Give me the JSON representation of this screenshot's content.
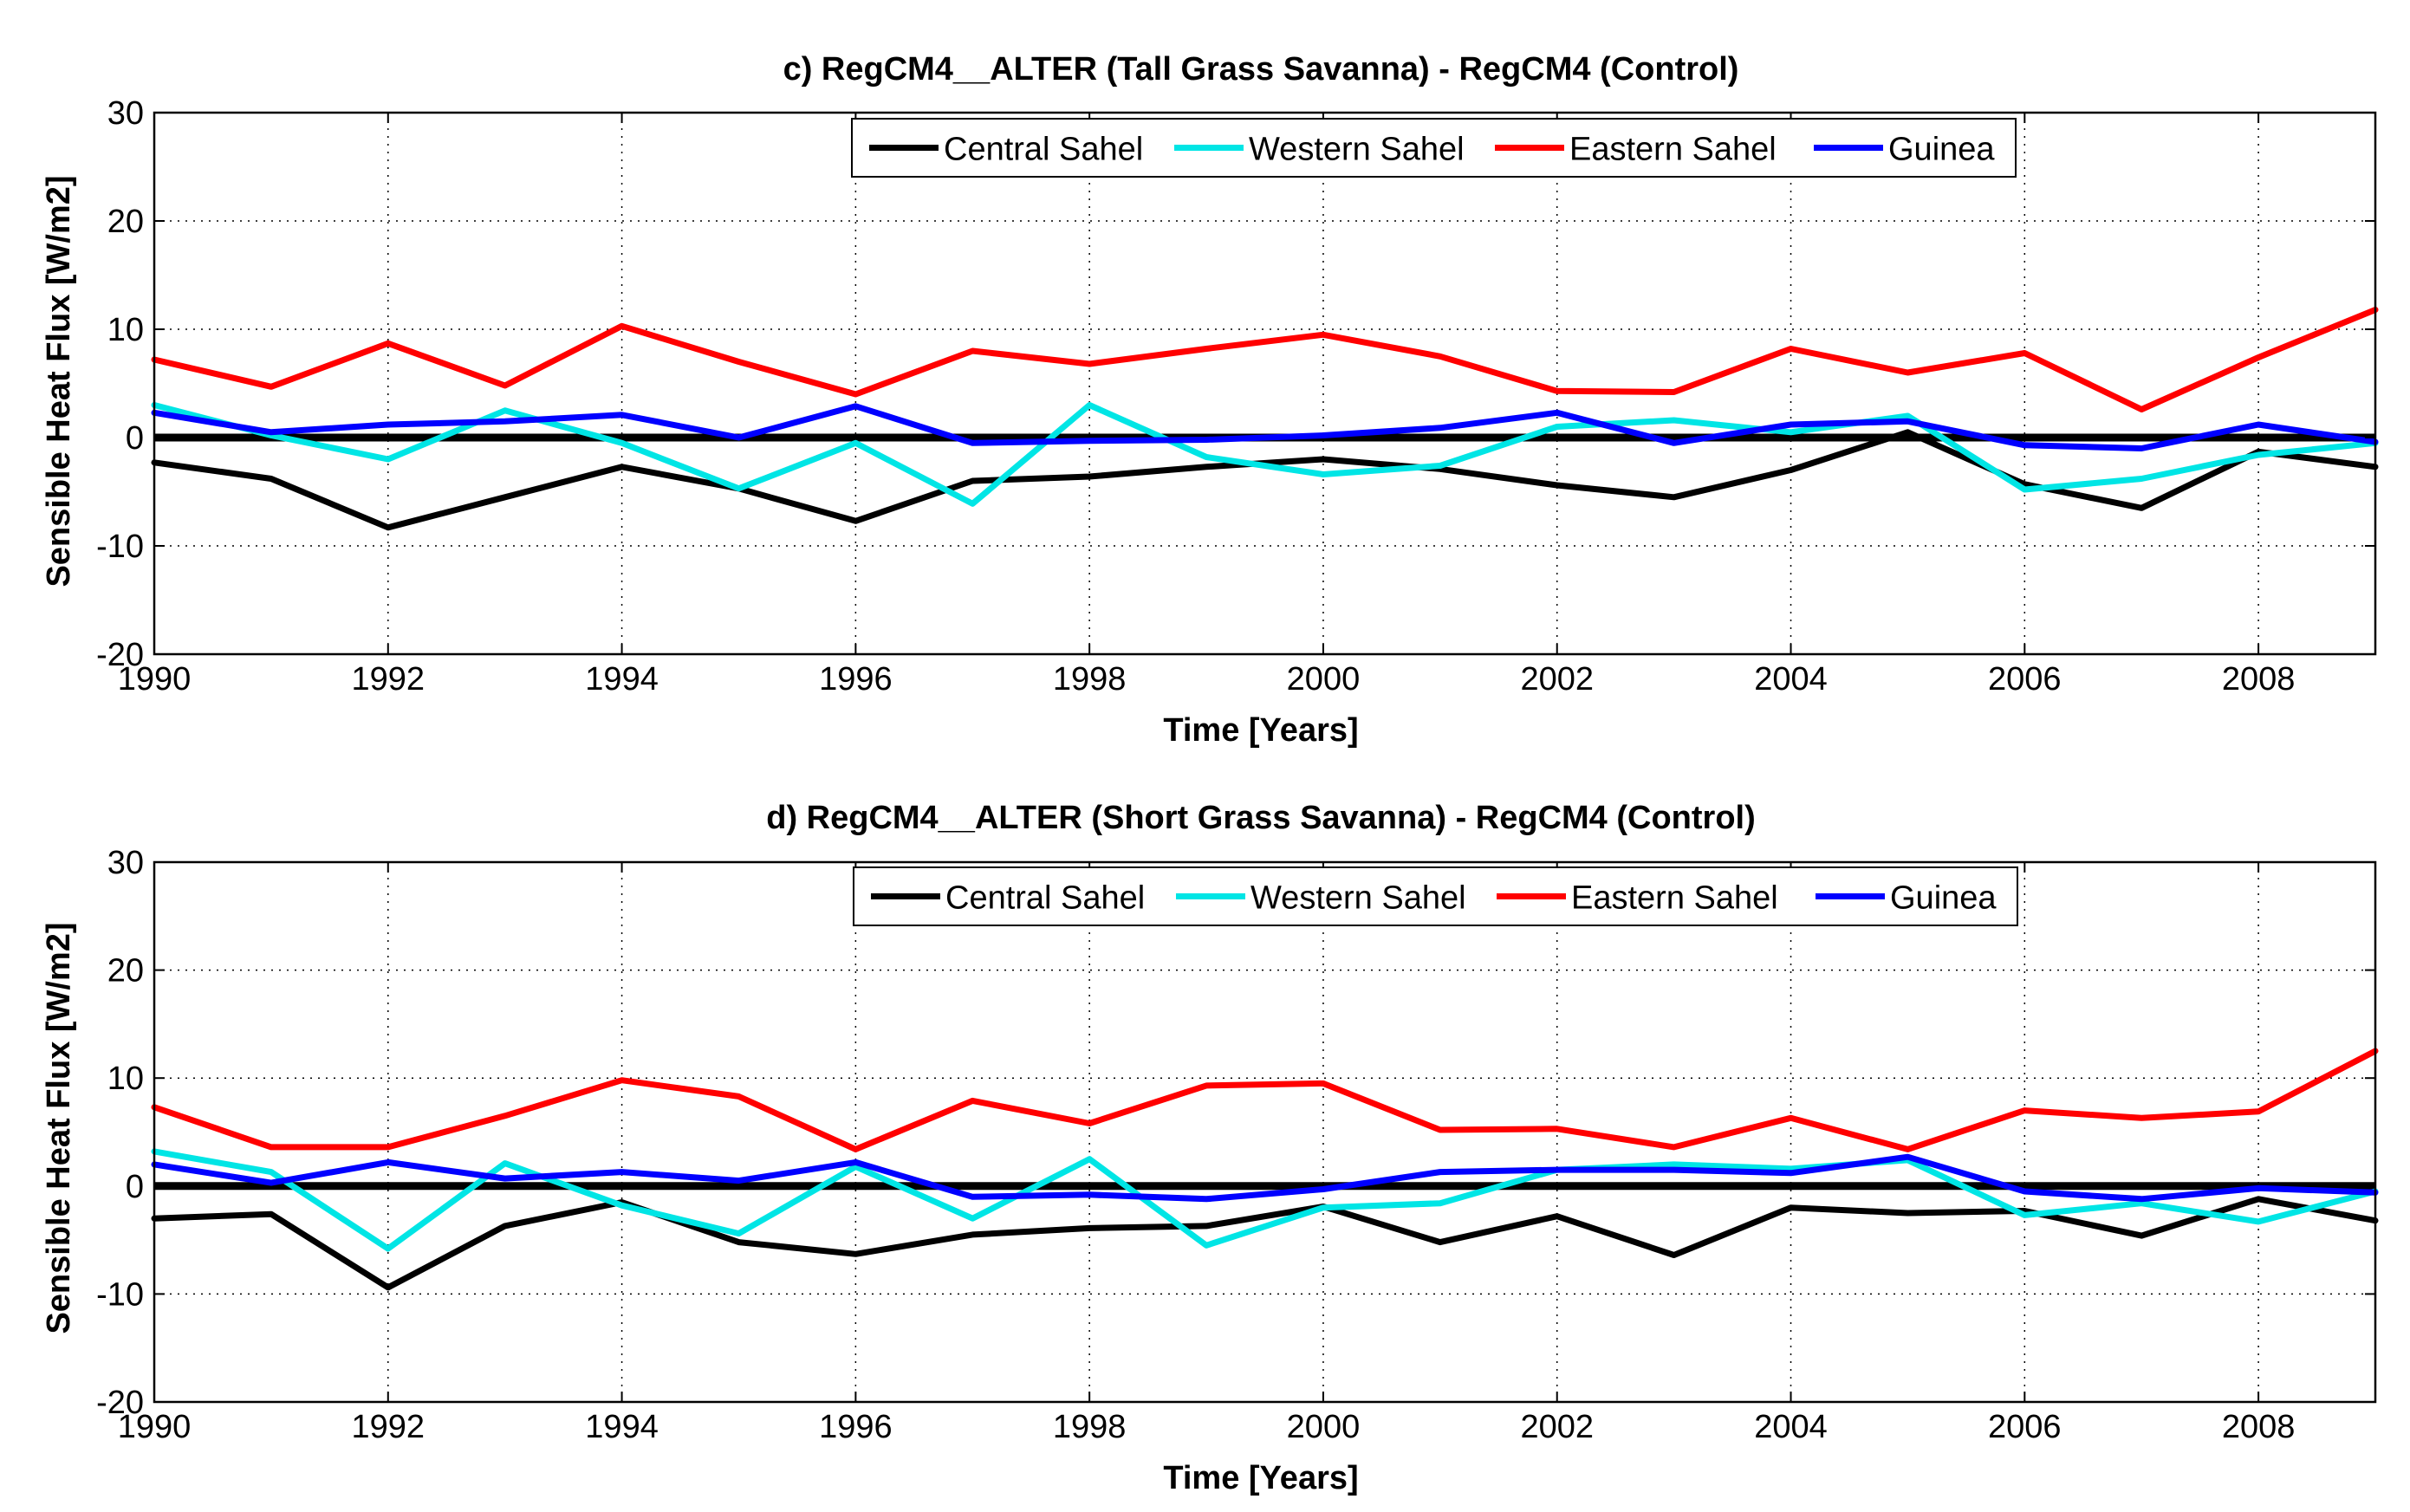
{
  "chart_data": [
    {
      "type": "line",
      "title": "c) RegCM4__ALTER (Tall Grass Savanna) - RegCM4 (Control)",
      "xlabel": "Time [Years]",
      "ylabel": "Sensible Heat Flux [W/m2]",
      "xlim": [
        1990,
        2009
      ],
      "ylim": [
        -20,
        30
      ],
      "xticks": [
        1990,
        1992,
        1994,
        1996,
        1998,
        2000,
        2002,
        2004,
        2006,
        2008
      ],
      "yticks": [
        -20,
        -10,
        0,
        10,
        20,
        30
      ],
      "grid": true,
      "legend_position": "top-right",
      "zero_line": 0,
      "x": [
        1990,
        1991,
        1992,
        1993,
        1994,
        1995,
        1996,
        1997,
        1998,
        1999,
        2000,
        2001,
        2002,
        2003,
        2004,
        2005,
        2006,
        2007,
        2008,
        2009
      ],
      "series": [
        {
          "name": "Central Sahel",
          "color": "#000000",
          "values": [
            -2.3,
            -3.8,
            -8.3,
            -5.5,
            -2.7,
            -4.7,
            -7.7,
            -4.0,
            -3.6,
            -2.7,
            -2.0,
            -2.9,
            -4.4,
            -5.5,
            -3.0,
            0.5,
            -4.3,
            -6.5,
            -1.3,
            -2.7
          ]
        },
        {
          "name": "Western Sahel",
          "color": "#00e5e5",
          "values": [
            3.0,
            0.2,
            -2.0,
            2.5,
            -0.5,
            -4.7,
            -0.5,
            -6.1,
            3.0,
            -1.8,
            -3.4,
            -2.6,
            1.0,
            1.6,
            0.5,
            2.0,
            -4.8,
            -3.8,
            -1.6,
            -0.5
          ]
        },
        {
          "name": "Eastern Sahel",
          "color": "#ff0000",
          "values": [
            7.2,
            4.7,
            8.7,
            4.8,
            10.3,
            7.0,
            4.0,
            8.0,
            6.8,
            8.2,
            9.5,
            7.5,
            4.3,
            4.2,
            8.2,
            6.0,
            7.8,
            2.6,
            7.4,
            11.8
          ]
        },
        {
          "name": "Guinea",
          "color": "#0000ff",
          "values": [
            2.3,
            0.5,
            1.2,
            1.5,
            2.1,
            0.0,
            2.9,
            -0.5,
            -0.3,
            -0.2,
            0.2,
            0.9,
            2.3,
            -0.5,
            1.2,
            1.5,
            -0.7,
            -1.0,
            1.2,
            -0.4
          ]
        }
      ]
    },
    {
      "type": "line",
      "title": "d) RegCM4__ALTER (Short Grass Savanna) - RegCM4 (Control)",
      "xlabel": "Time [Years]",
      "ylabel": "Sensible Heat Flux [W/m2]",
      "xlim": [
        1990,
        2009
      ],
      "ylim": [
        -20,
        30
      ],
      "xticks": [
        1990,
        1992,
        1994,
        1996,
        1998,
        2000,
        2002,
        2004,
        2006,
        2008
      ],
      "yticks": [
        -20,
        -10,
        0,
        10,
        20,
        30
      ],
      "grid": true,
      "legend_position": "top-right",
      "zero_line": 0,
      "x": [
        1990,
        1991,
        1992,
        1993,
        1994,
        1995,
        1996,
        1997,
        1998,
        1999,
        2000,
        2001,
        2002,
        2003,
        2004,
        2005,
        2006,
        2007,
        2008,
        2009
      ],
      "series": [
        {
          "name": "Central Sahel",
          "color": "#000000",
          "values": [
            -3.0,
            -2.6,
            -9.4,
            -3.7,
            -1.5,
            -5.2,
            -6.3,
            -4.5,
            -3.9,
            -3.7,
            -1.9,
            -5.2,
            -2.8,
            -6.4,
            -2.0,
            -2.5,
            -2.3,
            -4.6,
            -1.2,
            -3.2
          ]
        },
        {
          "name": "Western Sahel",
          "color": "#00e5e5",
          "values": [
            3.2,
            1.3,
            -5.8,
            2.1,
            -1.8,
            -4.4,
            1.8,
            -3.0,
            2.5,
            -5.5,
            -2.0,
            -1.6,
            1.5,
            2.0,
            1.6,
            2.4,
            -2.7,
            -1.6,
            -3.3,
            -0.5
          ]
        },
        {
          "name": "Eastern Sahel",
          "color": "#ff0000",
          "values": [
            7.3,
            3.6,
            3.6,
            6.5,
            9.8,
            8.3,
            3.4,
            7.9,
            5.8,
            9.3,
            9.5,
            5.2,
            5.3,
            3.6,
            6.3,
            3.4,
            7.0,
            6.3,
            6.9,
            12.5
          ]
        },
        {
          "name": "Guinea",
          "color": "#0000ff",
          "values": [
            2.0,
            0.3,
            2.2,
            0.7,
            1.3,
            0.5,
            2.2,
            -1.0,
            -0.8,
            -1.2,
            -0.3,
            1.3,
            1.5,
            1.5,
            1.2,
            2.7,
            -0.5,
            -1.2,
            -0.2,
            -0.6
          ]
        }
      ]
    }
  ]
}
